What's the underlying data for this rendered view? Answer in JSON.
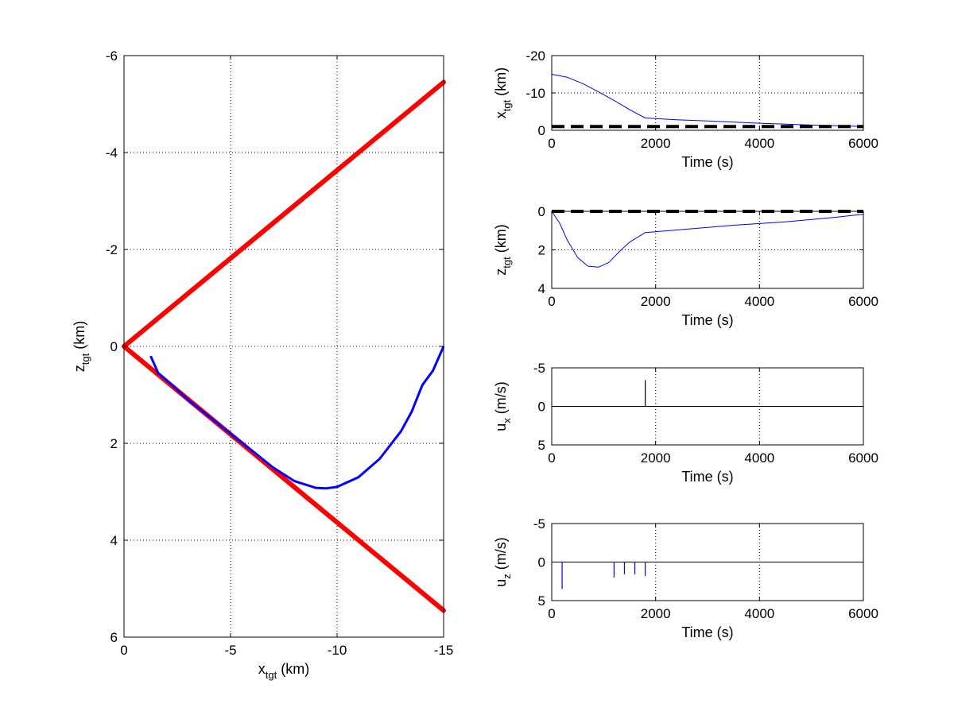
{
  "colors": {
    "boundary": "#ff0000",
    "trajectory": "#0000ff",
    "reference": "#000000",
    "axis": "#000000",
    "grid": "#000000"
  },
  "chart_data": [
    {
      "id": "main",
      "type": "line",
      "xlabel": "x",
      "xlabel_sub": "tgt",
      "xlabel_unit": "(km)",
      "ylabel": "z",
      "ylabel_sub": "tgt",
      "ylabel_unit": "(km)",
      "xlim": [
        0,
        -15
      ],
      "ylim": [
        -6,
        6
      ],
      "x_reversed": true,
      "y_reversed": true,
      "xticks": [
        0,
        -5,
        -10,
        -15
      ],
      "xtick_labels": [
        "0",
        "-5",
        "-10",
        "-15"
      ],
      "yticks": [
        -6,
        -4,
        -2,
        0,
        2,
        4,
        6
      ],
      "ytick_labels": [
        "-6",
        "-4",
        "-2",
        "0",
        "2",
        "4",
        "6"
      ],
      "grid": true,
      "series": [
        {
          "style": "boundary",
          "x": [
            0,
            -15
          ],
          "y": [
            0,
            -5.45
          ]
        },
        {
          "style": "boundary",
          "x": [
            0,
            -15
          ],
          "y": [
            0,
            5.45
          ]
        },
        {
          "style": "trajectory",
          "x": [
            -1.25,
            -1.6,
            -2.0,
            -3.0,
            -4.0,
            -5.0,
            -6.0,
            -7.0,
            -8.0,
            -9.0,
            -9.5,
            -10.0,
            -11.0,
            -12.0,
            -13.0,
            -13.5,
            -14.0,
            -14.5,
            -15.0
          ],
          "y": [
            0.2,
            0.55,
            0.7,
            1.1,
            1.45,
            1.8,
            2.15,
            2.5,
            2.78,
            2.92,
            2.93,
            2.9,
            2.7,
            2.32,
            1.75,
            1.35,
            0.8,
            0.5,
            0.0
          ]
        }
      ]
    },
    {
      "id": "x-time",
      "type": "line",
      "xlabel": "Time (s)",
      "ylabel": "x",
      "ylabel_sub": "tgt",
      "ylabel_unit": "(km)",
      "xlim": [
        0,
        6000
      ],
      "ylim": [
        -20,
        0
      ],
      "y_reversed": true,
      "xticks": [
        0,
        2000,
        4000,
        6000
      ],
      "xtick_labels": [
        "0",
        "2000",
        "4000",
        "6000"
      ],
      "yticks": [
        -20,
        -10,
        0
      ],
      "ytick_labels": [
        "-20",
        "-10",
        "0"
      ],
      "grid": true,
      "series": [
        {
          "style": "trajectory",
          "x": [
            0,
            300,
            600,
            900,
            1200,
            1500,
            1800,
            2400,
            3000,
            4000,
            5000,
            6000
          ],
          "y": [
            -15,
            -14.2,
            -12.5,
            -10.3,
            -8.0,
            -5.5,
            -3.3,
            -2.8,
            -2.5,
            -1.9,
            -1.4,
            -1.0
          ]
        },
        {
          "style": "reference",
          "dashed": true,
          "x": [
            0,
            6000
          ],
          "y": [
            -1.0,
            -1.0
          ]
        }
      ]
    },
    {
      "id": "z-time",
      "type": "line",
      "xlabel": "Time (s)",
      "ylabel": "z",
      "ylabel_sub": "tgt",
      "ylabel_unit": "(km)",
      "xlim": [
        0,
        6000
      ],
      "ylim": [
        0,
        4
      ],
      "y_reversed": true,
      "xticks": [
        0,
        2000,
        4000,
        6000
      ],
      "xtick_labels": [
        "0",
        "2000",
        "4000",
        "6000"
      ],
      "yticks": [
        0,
        2,
        4
      ],
      "ytick_labels": [
        "0",
        "2",
        "4"
      ],
      "grid": true,
      "series": [
        {
          "style": "trajectory",
          "x": [
            0,
            150,
            300,
            500,
            700,
            900,
            1100,
            1300,
            1500,
            1800,
            2500,
            3500,
            4500,
            5500,
            6000
          ],
          "y": [
            0,
            0.6,
            1.5,
            2.4,
            2.85,
            2.9,
            2.65,
            2.1,
            1.6,
            1.1,
            0.95,
            0.72,
            0.55,
            0.3,
            0.15
          ]
        },
        {
          "style": "reference",
          "dashed": true,
          "x": [
            0,
            6000
          ],
          "y": [
            0,
            0
          ]
        }
      ]
    },
    {
      "id": "ux-time",
      "type": "line",
      "xlabel": "Time (s)",
      "ylabel": "u",
      "ylabel_sub": "x",
      "ylabel_unit": "(m/s)",
      "xlim": [
        0,
        6000
      ],
      "ylim": [
        -5,
        5
      ],
      "y_reversed": true,
      "xticks": [
        0,
        2000,
        4000,
        6000
      ],
      "xtick_labels": [
        "0",
        "2000",
        "4000",
        "6000"
      ],
      "yticks": [
        -5,
        0,
        5
      ],
      "ytick_labels": [
        "-5",
        "0",
        "5"
      ],
      "grid": true,
      "series": [
        {
          "style": "reference",
          "x": [
            0,
            6000
          ],
          "y": [
            0,
            0
          ]
        },
        {
          "style": "impulse",
          "x": [
            1800
          ],
          "y": [
            -3.4
          ]
        }
      ]
    },
    {
      "id": "uz-time",
      "type": "line",
      "xlabel": "Time (s)",
      "ylabel": "u",
      "ylabel_sub": "z",
      "ylabel_unit": "(m/s)",
      "xlim": [
        0,
        6000
      ],
      "ylim": [
        -5,
        5
      ],
      "y_reversed": true,
      "xticks": [
        0,
        2000,
        4000,
        6000
      ],
      "xtick_labels": [
        "0",
        "2000",
        "4000",
        "6000"
      ],
      "yticks": [
        -5,
        0,
        5
      ],
      "ytick_labels": [
        "-5",
        "0",
        "5"
      ],
      "grid": true,
      "series": [
        {
          "style": "reference",
          "x": [
            0,
            6000
          ],
          "y": [
            0,
            0
          ]
        },
        {
          "style": "trajectory_impulse",
          "x": [
            200,
            1200,
            1400,
            1600,
            1800
          ],
          "y": [
            3.5,
            2.0,
            1.6,
            1.6,
            1.8
          ]
        }
      ]
    }
  ]
}
